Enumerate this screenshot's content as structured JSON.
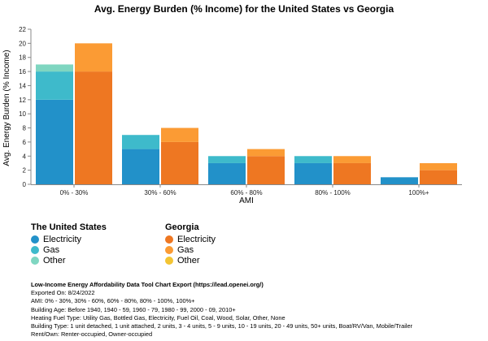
{
  "chart_data": {
    "type": "bar",
    "subtype": "stacked-grouped",
    "title": "Avg. Energy Burden (% Income) for the United States vs Georgia",
    "xlabel": "AMI",
    "ylabel": "Avg. Energy Burden (% Income)",
    "ylim": [
      0,
      22
    ],
    "yticks": [
      0,
      2,
      4,
      6,
      8,
      10,
      12,
      14,
      16,
      18,
      20,
      22
    ],
    "categories": [
      "0% - 30%",
      "30% - 60%",
      "60% - 80%",
      "80% - 100%",
      "100%+"
    ],
    "groups": [
      {
        "name": "The United States",
        "series": [
          {
            "name": "Electricity",
            "color": "#2291c9",
            "values": [
              12,
              5,
              3,
              3,
              1
            ]
          },
          {
            "name": "Gas",
            "color": "#3ebacb",
            "values": [
              4,
              2,
              1,
              1,
              0
            ]
          },
          {
            "name": "Other",
            "color": "#7fd6c1",
            "values": [
              1,
              0,
              0,
              0,
              0
            ]
          }
        ]
      },
      {
        "name": "Georgia",
        "series": [
          {
            "name": "Electricity",
            "color": "#ee7722",
            "values": [
              16,
              6,
              4,
              3,
              2
            ]
          },
          {
            "name": "Gas",
            "color": "#fb9b34",
            "values": [
              4,
              2,
              1,
              1,
              1
            ]
          },
          {
            "name": "Other",
            "color": "#f3c433",
            "values": [
              0,
              0,
              0,
              0,
              0
            ]
          }
        ]
      }
    ]
  },
  "legend": {
    "us": {
      "title": "The United States",
      "items": [
        {
          "label": "Electricity",
          "color": "#2291c9"
        },
        {
          "label": "Gas",
          "color": "#3ebacb"
        },
        {
          "label": "Other",
          "color": "#7fd6c1"
        }
      ]
    },
    "ga": {
      "title": "Georgia",
      "items": [
        {
          "label": "Electricity",
          "color": "#ee7722"
        },
        {
          "label": "Gas",
          "color": "#fb9b34"
        },
        {
          "label": "Other",
          "color": "#f3c433"
        }
      ]
    }
  },
  "metadata": {
    "title": "Low-Income Energy Affordability Data Tool Chart Export (https://lead.openei.org/)",
    "lines": [
      "Exported On: 8/24/2022",
      "AMI: 0% - 30%, 30% - 60%, 60% - 80%, 80% - 100%, 100%+",
      "Building Age: Before 1940, 1940 - 59, 1960 - 79, 1980 - 99, 2000 - 09, 2010+",
      "Heating Fuel Type: Utility Gas, Bottled Gas, Electricity, Fuel Oil, Coal, Wood, Solar, Other, None",
      "Building Type: 1 unit detached, 1 unit attached, 2 units, 3 - 4 units, 5 - 9 units, 10 - 19 units, 20 - 49 units, 50+ units, Boat/RV/Van, Mobile/Trailer",
      "Rent/Own: Renter-occupied, Owner-occupied"
    ]
  }
}
